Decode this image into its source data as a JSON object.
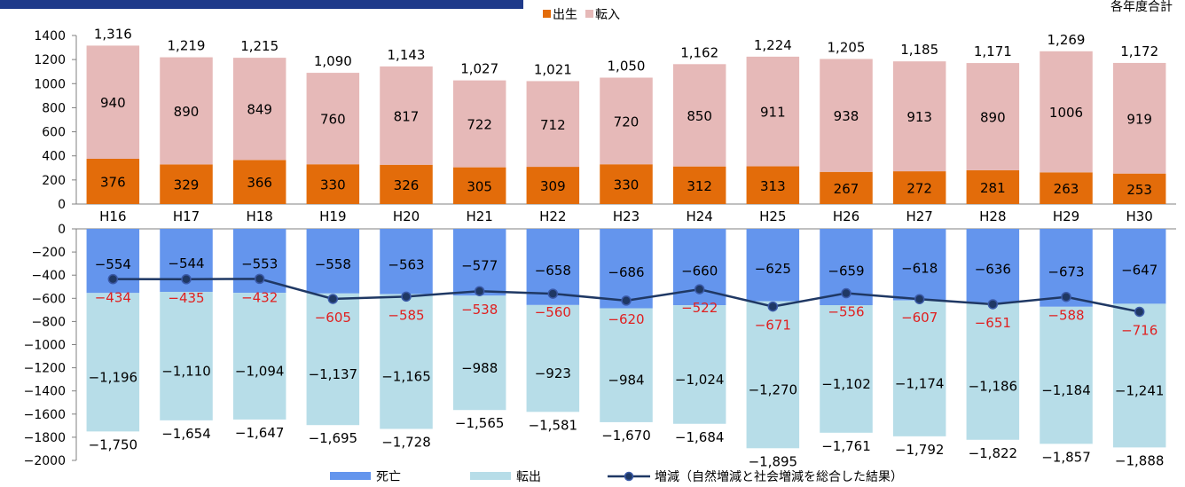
{
  "note_top_right": "各年度合計",
  "chart_data": [
    {
      "type": "bar",
      "stacked": true,
      "categories": [
        "H16",
        "H17",
        "H18",
        "H19",
        "H20",
        "H21",
        "H22",
        "H23",
        "H24",
        "H25",
        "H26",
        "H27",
        "H28",
        "H29",
        "H30"
      ],
      "ylim": [
        0,
        1400
      ],
      "yticks": [
        0,
        200,
        400,
        600,
        800,
        1000,
        1200,
        1400
      ],
      "legend": "top",
      "series": [
        {
          "name": "出生",
          "color": "#e36c0a",
          "values": [
            376,
            329,
            366,
            330,
            326,
            305,
            309,
            330,
            312,
            313,
            267,
            272,
            281,
            263,
            253
          ]
        },
        {
          "name": "転入",
          "color": "#e6b9b8",
          "values": [
            940,
            890,
            849,
            760,
            817,
            722,
            712,
            720,
            850,
            911,
            938,
            913,
            890,
            1006,
            919
          ]
        }
      ],
      "totals": [
        "1,316",
        "1,219",
        "1,215",
        "1,090",
        "1,143",
        "1,027",
        "1,021",
        "1,050",
        "1,162",
        "1,224",
        "1,205",
        "1,185",
        "1,171",
        "1,269",
        "1,172"
      ]
    },
    {
      "type": "bar",
      "stacked": true,
      "categories": [
        "H16",
        "H17",
        "H18",
        "H19",
        "H20",
        "H21",
        "H22",
        "H23",
        "H24",
        "H25",
        "H26",
        "H27",
        "H28",
        "H29",
        "H30"
      ],
      "ylim": [
        -2000,
        0
      ],
      "yticks": [
        0,
        -200,
        -400,
        -600,
        -800,
        -1000,
        -1200,
        -1400,
        -1600,
        -1800,
        -2000
      ],
      "legend": "bottom",
      "series": [
        {
          "name": "死亡",
          "color": "#6495ed",
          "values": [
            -554,
            -544,
            -553,
            -558,
            -563,
            -577,
            -658,
            -686,
            -660,
            -625,
            -659,
            -618,
            -636,
            -673,
            -647
          ],
          "labels": [
            "−554",
            "−544",
            "−553",
            "−558",
            "−563",
            "−577",
            "−658",
            "−686",
            "−660",
            "−625",
            "−659",
            "−618",
            "−636",
            "−673",
            "−647"
          ]
        },
        {
          "name": "転出",
          "color": "#b7dde8",
          "values": [
            -1196,
            -1110,
            -1094,
            -1137,
            -1165,
            -988,
            -923,
            -984,
            -1024,
            -1270,
            -1102,
            -1174,
            -1186,
            -1184,
            -1241
          ],
          "labels": [
            "−1,196",
            "−1,110",
            "−1,094",
            "−1,137",
            "−1,165",
            "−988",
            "−923",
            "−984",
            "−1,024",
            "−1,270",
            "−1,102",
            "−1,174",
            "−1,186",
            "−1,184",
            "−1,241"
          ]
        }
      ],
      "totals": [
        "−1,750",
        "−1,654",
        "−1,647",
        "−1,695",
        "−1,728",
        "−1,565",
        "−1,581",
        "−1,670",
        "−1,684",
        "−1,895",
        "−1,761",
        "−1,792",
        "−1,822",
        "−1,857",
        "−1,888"
      ],
      "line": {
        "name": "増減（自然増減と社会増減を総合した結果）",
        "color": "#1f3864",
        "label_color": "#e02020",
        "values": [
          -434,
          -435,
          -432,
          -605,
          -585,
          -538,
          -560,
          -620,
          -522,
          -671,
          -556,
          -607,
          -651,
          -588,
          -716
        ],
        "labels": [
          "−434",
          "−435",
          "−432",
          "−605",
          "−585",
          "−538",
          "−560",
          "−620",
          "−522",
          "−671",
          "−556",
          "−607",
          "−651",
          "−588",
          "−716"
        ]
      }
    }
  ]
}
